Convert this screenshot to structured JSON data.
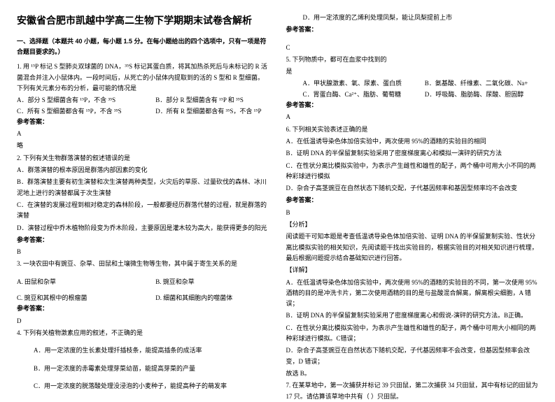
{
  "title": "安徽省合肥市凯越中学高二生物下学期期末试卷含解析",
  "left": {
    "section": "一、选择题（本题共 40 小题，每小题 1.5 分。在每小题给出的四个选项中，只有一项是符合题目要求的。）",
    "q1": {
      "text": "1. 用 ¹⁵P 标记 S 型肺炎双球菌的 DNA，³⁵S 标记其蛋白质，将其加热杀死后与未标记的 R 活菌混合并注入小鼠体内。一段时间后，从死亡的小鼠体内提取到的活的 S 型和 R 型细菌。下列有关元素分布的分析，最可能的情况是",
      "optA": "A．部分 S 型细菌含有 ¹⁵P，不含 ³⁵S",
      "optB": "B．部分 R 型细菌含有 ¹⁵P 和 ³⁵S",
      "optC": "C．所有 S 型细菌都含有 ¹⁵P，不含 ³⁵S",
      "optD": "D．所有 R 型细菌都含有 ³⁵S，不含 ¹⁵P",
      "ansLabel": "参考答案：",
      "ans": "A",
      "brief": "略"
    },
    "q2": {
      "text": "2. 下列有关生物群落演替的叙述错误的是",
      "optA": "A．群落演替的根本原因是群落内部因素的变化",
      "optB": "B．群落演替主要有初生演替和次生演替两种类型，火灾后的草原、过量砍伐的森林、冰川泥地上进行的演替都属于次生演替",
      "optC": "C．在演替的发展过程到相对稳定的森林阶段，一般都要经历群落代替的过程，就是群落的演替",
      "optD": "D．演替过程中乔木植物阶段变为乔木阶段，主要原因是灌木较为高大，能获得更多的阳光",
      "ansLabel": "参考答案：",
      "ans": "B"
    },
    "q3": {
      "text": "3. 一块农田中有豌豆、杂草、田鼠和土壤微生物等生物，其中属于寄生关系的是",
      "optA": "A. 田鼠和杂草",
      "optB": "B. 豌豆和杂草",
      "optC": "C. 豌豆和其根中的根瘤菌",
      "optD": "D. 细菌和其细胞内的噬菌体",
      "ansLabel": "参考答案：",
      "ans": "D"
    },
    "q4": {
      "text": "4. 下列有关植物激素应用的叙述，不正确的是",
      "optA": "A．用一定浓度的生长素处理扦插枝条，能提高插条的成活率",
      "optB": "B．用一定浓度的赤霉素处理芽菜幼苗，能提高芽菜的产量",
      "optC": "C．用一定浓度的脱落酸处理没浸泡的小麦种子，能提高种子的萌发率"
    }
  },
  "right": {
    "q4d": "D．用一定浓度的乙烯利处理凤梨，能让凤梨提前上市",
    "q4ansLabel": "参考答案：",
    "q4ans": "C",
    "q5": {
      "text": "5. 下列物质中，都可在血浆中找到的",
      "sub": "是",
      "optA": "A．甲状腺激素、氧、尿素、蛋白质",
      "optB": "B．氨基酸、纤维素、二氧化碳、Na+",
      "optC": "C．胃蛋白酶、Ca²⁺、脂肪、葡萄糖",
      "optD": "D．呼吸酶、脂肪酶、尿酸、胆固醇",
      "ansLabel": "参考答案：",
      "ans": "A"
    },
    "q6": {
      "text": "6. 下列相关实验表述正确的是",
      "optA": "A．在低温诱导染色体加倍实验中，两次使用 95%的酒精的实验目的相同",
      "optB": "B．证明 DNA 的半保留复制实验采用了密度梯度离心和模拟一演砰的研究方法",
      "optC": "C．在性状分离比模拟实验中，为表示产生雌性和雄性的配子，两个桶中可用大小不同的两种彩球进行模拟",
      "optD": "D．杂合子高茎豌豆在自然状态下随机交配，子代基因频率和基因型频率均不会改变",
      "ansLabel": "参考答案：",
      "ans": "B",
      "analysisLabel": "【分析】",
      "analysis": "阅读题干可知本题是考查低温诱导染色体加倍实验、证明 DNA 的半保留复制实验、性状分离比模拟实验的相关知识，先阅读题干找出实验目的，根据实验目的对相关知识进行梳理，最后根据问题提示结合基础知识进行回答。",
      "detailLabel": "【详解】",
      "detailA": "A．在低温诱导染色体加倍实验中，两次使用 95%的酒精的实验目的不同，第一次使用 95%酒精的目的是冲洗卡片，第二次使用酒精的目的是与盐酸混合解离，解离根尖细胞，A 错误；",
      "detailB": "B．证明 DNA 的半保留复制实验采用了密度梯度离心和假说-演砰的研究方法。B正确。",
      "detailC": "C．在性状分离比模拟实验中，为表示产生雄性和雄性的配子，两个桶中可用大小相同的两种彩球进行模拟。C错误；",
      "detailD": "D．杂合子高茎豌豆在自然状态下随机交配，子代基因频率不会改变，但基因型频率会改变，D 错误；",
      "choose": "故选 B。"
    },
    "q7": {
      "text": "7. 在某草地中，第一次捕获并标记 39 只田鼠，第二次捕获 34 只田鼠，其中有标记的田鼠为 17 只。请估算该草地中共有（         ）只田鼠。"
    }
  }
}
